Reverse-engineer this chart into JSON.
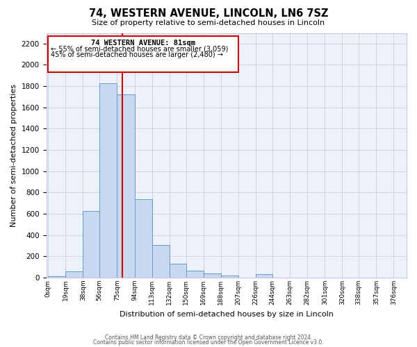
{
  "title": "74, WESTERN AVENUE, LINCOLN, LN6 7SZ",
  "subtitle": "Size of property relative to semi-detached houses in Lincoln",
  "xlabel": "Distribution of semi-detached houses by size in Lincoln",
  "ylabel": "Number of semi-detached properties",
  "bin_labels": [
    "0sqm",
    "19sqm",
    "38sqm",
    "56sqm",
    "75sqm",
    "94sqm",
    "113sqm",
    "132sqm",
    "150sqm",
    "169sqm",
    "188sqm",
    "207sqm",
    "226sqm",
    "244sqm",
    "263sqm",
    "282sqm",
    "301sqm",
    "320sqm",
    "338sqm",
    "357sqm",
    "376sqm"
  ],
  "bar_values": [
    15,
    60,
    625,
    1830,
    1720,
    740,
    305,
    130,
    65,
    40,
    20,
    0,
    35,
    0,
    0,
    0,
    0,
    0,
    0,
    0
  ],
  "bar_color": "#c8d8ef",
  "bar_edge_color": "#6699cc",
  "property_line_x": 81,
  "property_line_label": "74 WESTERN AVENUE: 81sqm",
  "annotation_line1": "← 55% of semi-detached houses are smaller (3,059)",
  "annotation_line2": "45% of semi-detached houses are larger (2,480) →",
  "red_line_color": "#cc0000",
  "box_edge_color": "#cc0000",
  "ylim": [
    0,
    2300
  ],
  "yticks": [
    0,
    200,
    400,
    600,
    800,
    1000,
    1200,
    1400,
    1600,
    1800,
    2000,
    2200
  ],
  "grid_color": "#c0c8e0",
  "bg_color": "#edf1fa",
  "footer1": "Contains HM Land Registry data © Crown copyright and database right 2024.",
  "footer2": "Contains public sector information licensed under the Open Government Licence v3.0."
}
